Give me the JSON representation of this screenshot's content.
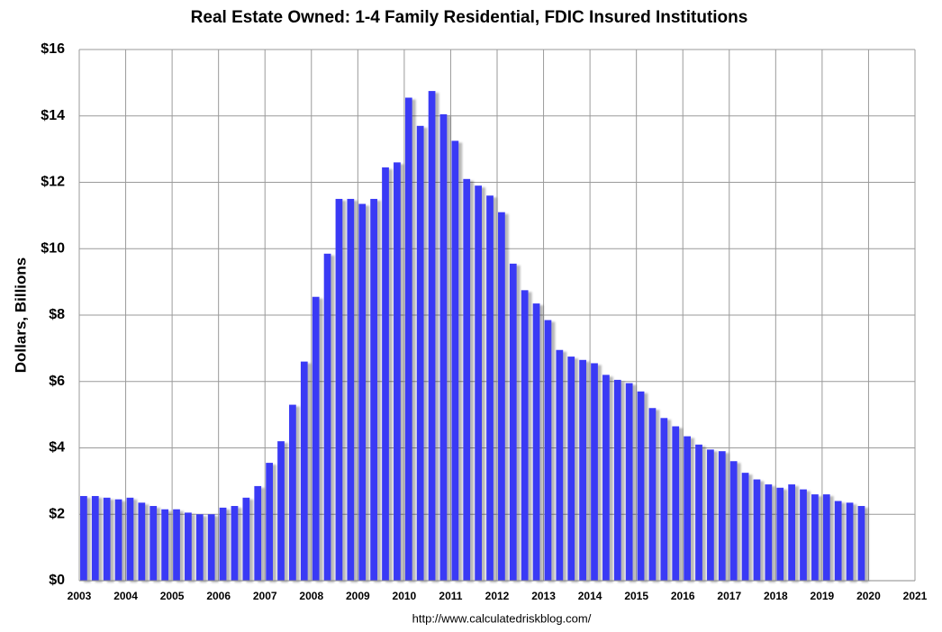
{
  "chart_data": {
    "type": "bar",
    "title": "Real Estate Owned: 1-4 Family Residential, FDIC Insured Institutions",
    "ylabel": "Dollars, Billions",
    "source": "http://www.calculatedriskblog.com/",
    "color": "#3a3af5",
    "grid": true,
    "x": [
      2003,
      2003.25,
      2003.5,
      2003.75,
      2004,
      2004.25,
      2004.5,
      2004.75,
      2005,
      2005.25,
      2005.5,
      2005.75,
      2006,
      2006.25,
      2006.5,
      2006.75,
      2007,
      2007.25,
      2007.5,
      2007.75,
      2008,
      2008.25,
      2008.5,
      2008.75,
      2009,
      2009.25,
      2009.5,
      2009.75,
      2010,
      2010.25,
      2010.5,
      2010.75,
      2011,
      2011.25,
      2011.5,
      2011.75,
      2012,
      2012.25,
      2012.5,
      2012.75,
      2013,
      2013.25,
      2013.5,
      2013.75,
      2014,
      2014.25,
      2014.5,
      2014.75,
      2015,
      2015.25,
      2015.5,
      2015.75,
      2016,
      2016.25,
      2016.5,
      2016.75,
      2017,
      2017.25,
      2017.5,
      2017.75,
      2018,
      2018.25,
      2018.5,
      2018.75,
      2019,
      2019.25,
      2019.5,
      2019.75
    ],
    "values": [
      2.55,
      2.55,
      2.5,
      2.45,
      2.5,
      2.35,
      2.25,
      2.15,
      2.15,
      2.05,
      2.0,
      2.0,
      2.2,
      2.25,
      2.5,
      2.85,
      3.55,
      4.2,
      5.3,
      6.6,
      8.55,
      9.85,
      11.5,
      11.5,
      11.35,
      11.5,
      12.45,
      12.6,
      14.55,
      13.7,
      14.75,
      14.05,
      13.25,
      12.1,
      11.9,
      11.6,
      11.1,
      9.55,
      8.75,
      8.35,
      7.85,
      6.95,
      6.75,
      6.65,
      6.55,
      6.2,
      6.05,
      5.95,
      5.7,
      5.2,
      4.9,
      4.65,
      4.35,
      4.1,
      3.95,
      3.9,
      3.6,
      3.25,
      3.05,
      2.9,
      2.8,
      2.9,
      2.75,
      2.6,
      2.6,
      2.4,
      2.35,
      2.25
    ],
    "xlim": [
      2003,
      2021
    ],
    "xticks": [
      2003,
      2004,
      2005,
      2006,
      2007,
      2008,
      2009,
      2010,
      2011,
      2012,
      2013,
      2014,
      2015,
      2016,
      2017,
      2018,
      2019,
      2020,
      2021
    ],
    "ylim": [
      0,
      16
    ],
    "yticks": [
      {
        "value": 0,
        "label": "$0"
      },
      {
        "value": 2,
        "label": "$2"
      },
      {
        "value": 4,
        "label": "$4"
      },
      {
        "value": 6,
        "label": "$6"
      },
      {
        "value": 8,
        "label": "$8"
      },
      {
        "value": 10,
        "label": "$10"
      },
      {
        "value": 12,
        "label": "$12"
      },
      {
        "value": 14,
        "label": "$14"
      },
      {
        "value": 16,
        "label": "$16"
      }
    ]
  }
}
